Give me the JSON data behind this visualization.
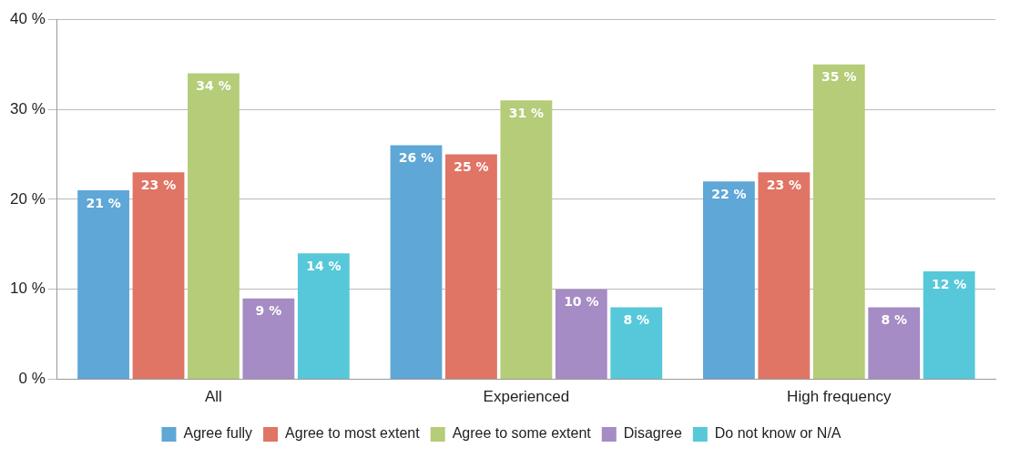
{
  "chart_data": {
    "type": "bar",
    "categories": [
      "All",
      "Experienced",
      "High frequency"
    ],
    "series": [
      {
        "name": "Agree fully",
        "color": "#5ea7d6",
        "values": [
          21,
          26,
          22
        ],
        "value_labels": [
          "21 %",
          "26 %",
          "22 %"
        ]
      },
      {
        "name": "Agree to most extent",
        "color": "#e07465",
        "values": [
          23,
          25,
          23
        ],
        "value_labels": [
          "23 %",
          "25 %",
          "23 %"
        ]
      },
      {
        "name": "Agree to some extent",
        "color": "#b5cc78",
        "values": [
          34,
          31,
          35
        ],
        "value_labels": [
          "34 %",
          "31 %",
          "35 %"
        ]
      },
      {
        "name": "Disagree",
        "color": "#a58cc4",
        "values": [
          9,
          10,
          8
        ],
        "value_labels": [
          "9 %",
          "10 %",
          "8 %"
        ]
      },
      {
        "name": "Do not know or N/A",
        "color": "#56c8d9",
        "values": [
          14,
          8,
          12
        ],
        "value_labels": [
          "14 %",
          "8 %",
          "12 %"
        ]
      }
    ],
    "ylim": [
      0,
      40
    ],
    "yticks": [
      {
        "value": 0,
        "label": "0 %"
      },
      {
        "value": 10,
        "label": "10 %"
      },
      {
        "value": 20,
        "label": "20 %"
      },
      {
        "value": 30,
        "label": "30 %"
      },
      {
        "value": 40,
        "label": "40 %"
      }
    ],
    "grid": "y",
    "legend": "bottom"
  }
}
